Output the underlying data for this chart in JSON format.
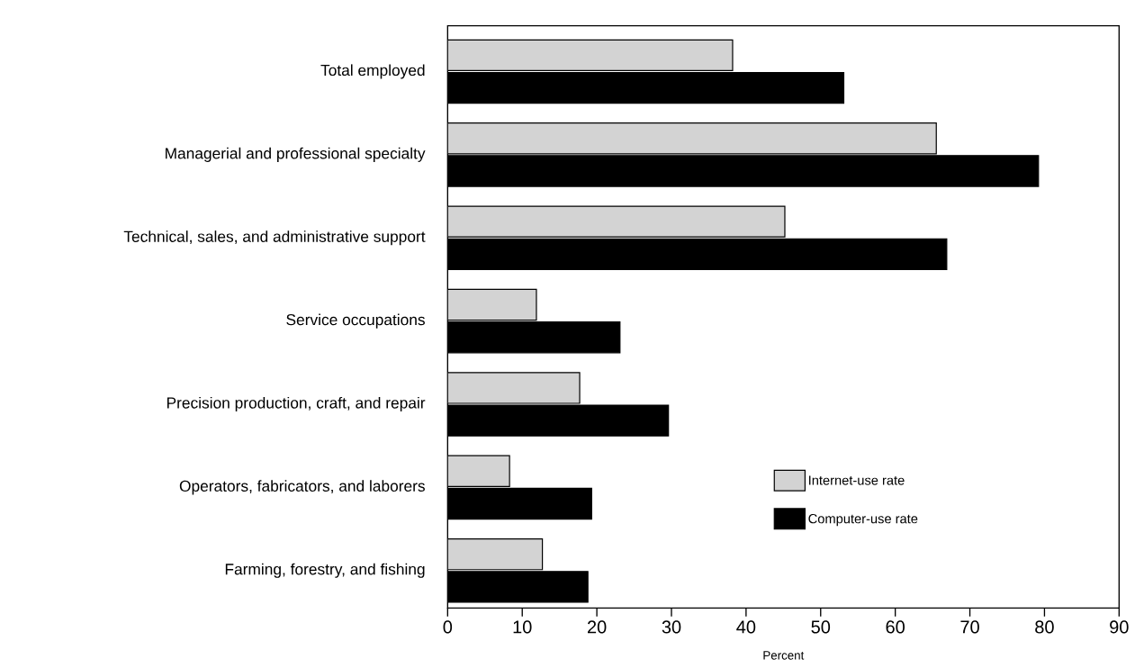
{
  "chart_data": {
    "type": "bar",
    "orientation": "horizontal",
    "xlabel": "Percent",
    "categories": [
      "Total employed",
      "Managerial and professional specialty",
      "Technical, sales, and administrative support",
      "Service occupations",
      "Precision production, craft, and repair",
      "Operators, fabricators, and laborers",
      "Farming, forestry, and fishing"
    ],
    "series": [
      {
        "name": "Internet-use rate",
        "color": "#d3d3d3",
        "values": [
          38.2,
          65.5,
          45.2,
          11.9,
          17.7,
          8.3,
          12.7
        ]
      },
      {
        "name": "Computer-use rate",
        "color": "#000000",
        "values": [
          53.1,
          79.2,
          66.9,
          23.1,
          29.6,
          19.3,
          18.8
        ]
      }
    ],
    "xlim": [
      0,
      90
    ],
    "xticks": [
      0,
      10,
      20,
      30,
      40,
      50,
      60,
      70,
      80,
      90
    ],
    "grid": false,
    "legend": "bottom right"
  }
}
